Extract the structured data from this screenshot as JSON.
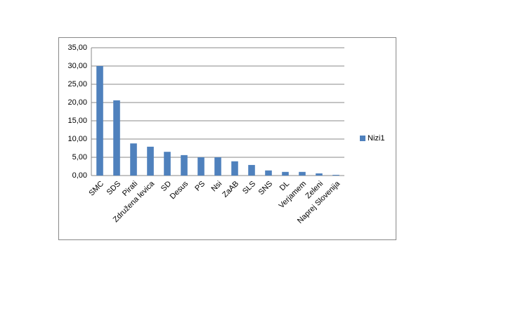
{
  "chart_data": {
    "type": "bar",
    "categories": [
      "SMC",
      "SDS",
      "Pirati",
      "Združena levica",
      "SD",
      "Desus",
      "PS",
      "Nsi",
      "ZaAB",
      "SLS",
      "SNS",
      "DL",
      "Verjamem",
      "Zeleni",
      "Naprej Slovenija"
    ],
    "series": [
      {
        "name": "Nizi1",
        "color": "#4f81bd",
        "values": [
          30.0,
          20.6,
          8.8,
          7.9,
          6.5,
          5.6,
          5.0,
          5.0,
          3.9,
          2.9,
          1.4,
          1.0,
          1.0,
          0.6,
          0.2
        ]
      }
    ],
    "ylim": [
      0,
      35
    ],
    "yticks": [
      {
        "value": 0,
        "label": "0,00"
      },
      {
        "value": 5,
        "label": "5,00"
      },
      {
        "value": 10,
        "label": "10,00"
      },
      {
        "value": 15,
        "label": "15,00"
      },
      {
        "value": 20,
        "label": "20,00"
      },
      {
        "value": 25,
        "label": "25,00"
      },
      {
        "value": 30,
        "label": "30,00"
      },
      {
        "value": 35,
        "label": "35,00"
      }
    ],
    "grid": true,
    "legend": "right"
  }
}
